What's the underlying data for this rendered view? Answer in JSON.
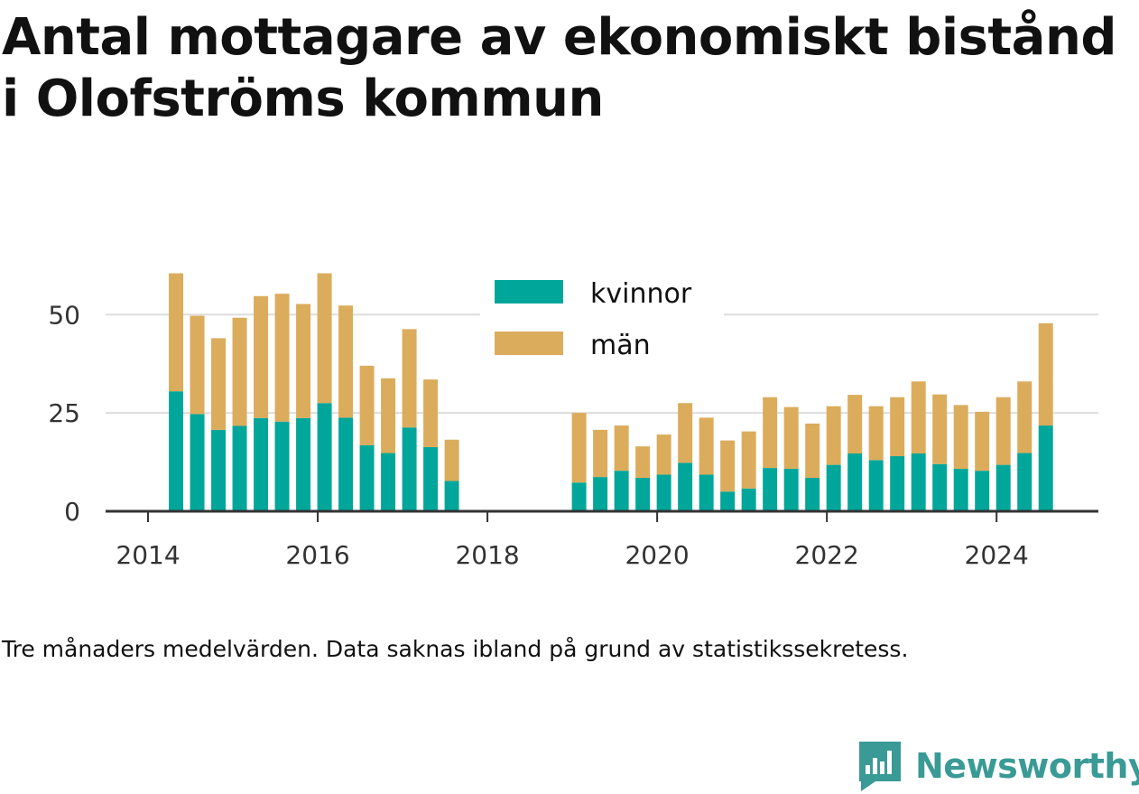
{
  "title": "Antal mottagare av ekonomiskt bistånd i Olofströms kommun",
  "footnote": "Tre månaders medelvärden. Data saknas ibland på grund av statistikssekretess.",
  "brand": {
    "name": "Newsworthy",
    "icon": "newsworthy-logo-icon"
  },
  "colors": {
    "kvinnor": "#00a69a",
    "man": "#dbac5b",
    "grid": "#dddddd",
    "axis": "#333333"
  },
  "chart_data": {
    "type": "bar",
    "stacked": true,
    "x_unit": "year",
    "x": [
      2014.33,
      2014.58,
      2014.83,
      2015.08,
      2015.33,
      2015.58,
      2015.83,
      2016.08,
      2016.33,
      2016.58,
      2016.83,
      2017.08,
      2017.33,
      2017.58,
      2019.08,
      2019.33,
      2019.58,
      2019.83,
      2020.08,
      2020.33,
      2020.58,
      2020.83,
      2021.08,
      2021.33,
      2021.58,
      2021.83,
      2022.08,
      2022.33,
      2022.58,
      2022.83,
      2023.08,
      2023.33,
      2023.58,
      2023.83,
      2024.08,
      2024.33,
      2024.58
    ],
    "series": [
      {
        "name": "kvinnor",
        "color": "#00a69a",
        "values": [
          30.5,
          24.7,
          20.7,
          21.7,
          23.7,
          22.8,
          23.7,
          27.5,
          23.8,
          16.8,
          14.8,
          21.3,
          16.3,
          7.7,
          7.3,
          8.7,
          10.3,
          8.5,
          9.3,
          12.3,
          9.3,
          5.0,
          5.8,
          11.0,
          10.8,
          8.5,
          11.8,
          14.7,
          13.0,
          14.0,
          14.7,
          12.0,
          10.8,
          10.3,
          11.8,
          14.8,
          21.8
        ]
      },
      {
        "name": "män",
        "color": "#dbac5b",
        "values": [
          30.0,
          25.0,
          23.3,
          27.5,
          31.0,
          32.5,
          29.0,
          33.0,
          28.5,
          20.2,
          19.0,
          25.0,
          17.2,
          10.5,
          17.7,
          12.0,
          11.5,
          8.0,
          10.2,
          15.2,
          14.5,
          13.0,
          14.5,
          18.0,
          15.7,
          13.8,
          14.9,
          14.9,
          13.7,
          15.0,
          18.3,
          17.7,
          16.2,
          15.0,
          17.2,
          18.2,
          26.0
        ]
      }
    ],
    "xlim": [
      2013.5,
      2025.2
    ],
    "ylim": [
      0,
      62
    ],
    "x_ticks": [
      2014,
      2016,
      2018,
      2020,
      2022,
      2024
    ],
    "x_tick_labels": [
      "2014",
      "2016",
      "2018",
      "2020",
      "2022",
      "2024"
    ],
    "y_ticks": [
      0,
      25,
      50
    ],
    "y_tick_labels": [
      "0",
      "25",
      "50"
    ],
    "xlabel": "",
    "ylabel": "",
    "grid": "horizontal",
    "legend": {
      "position": "top-center",
      "entries": [
        "kvinnor",
        "män"
      ]
    }
  }
}
